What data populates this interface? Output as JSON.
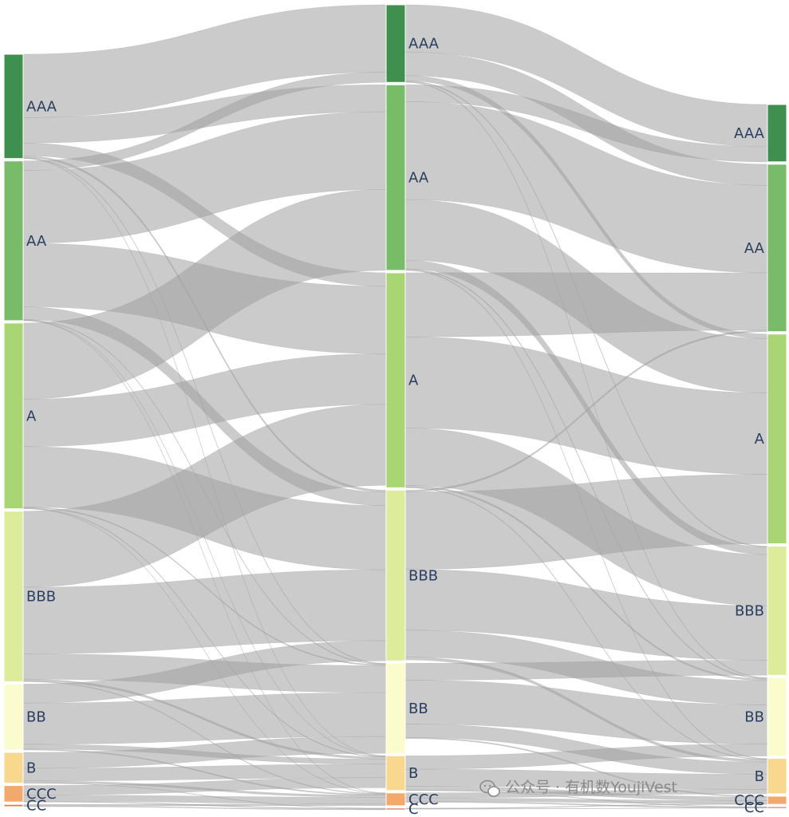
{
  "chart_data": {
    "type": "sankey",
    "title": "",
    "columns": [
      {
        "nodes": [
          {
            "id": "L0_AAA",
            "label": "AAA",
            "color": "#3f8f4e"
          },
          {
            "id": "L0_AA",
            "label": "AA",
            "color": "#78bb68"
          },
          {
            "id": "L0_A",
            "label": "A",
            "color": "#aad574"
          },
          {
            "id": "L0_BBB",
            "label": "BBB",
            "color": "#dcec9a"
          },
          {
            "id": "L0_BB",
            "label": "BB",
            "color": "#fbfccd"
          },
          {
            "id": "L0_B",
            "label": "B",
            "color": "#f8d88e"
          },
          {
            "id": "L0_CCC",
            "label": "CCC",
            "color": "#f2a96b"
          },
          {
            "id": "L0_CC",
            "label": "CC",
            "color": "#e07a4a"
          }
        ]
      },
      {
        "nodes": [
          {
            "id": "L1_AAA",
            "label": "AAA",
            "color": "#3f8f4e"
          },
          {
            "id": "L1_AA",
            "label": "AA",
            "color": "#78bb68"
          },
          {
            "id": "L1_A",
            "label": "A",
            "color": "#aad574"
          },
          {
            "id": "L1_BBB",
            "label": "BBB",
            "color": "#dcec9a"
          },
          {
            "id": "L1_BB",
            "label": "BB",
            "color": "#fbfccd"
          },
          {
            "id": "L1_B",
            "label": "B",
            "color": "#f8d88e"
          },
          {
            "id": "L1_CCC",
            "label": "CCC",
            "color": "#f2a96b"
          },
          {
            "id": "L1_C",
            "label": "C",
            "color": "#d6604d"
          }
        ]
      },
      {
        "nodes": [
          {
            "id": "L2_AAA",
            "label": "AAA",
            "color": "#3f8f4e"
          },
          {
            "id": "L2_AA",
            "label": "AA",
            "color": "#78bb68"
          },
          {
            "id": "L2_A",
            "label": "A",
            "color": "#aad574"
          },
          {
            "id": "L2_BBB",
            "label": "BBB",
            "color": "#dcec9a"
          },
          {
            "id": "L2_BB",
            "label": "BB",
            "color": "#fbfccd"
          },
          {
            "id": "L2_B",
            "label": "B",
            "color": "#f8d88e"
          },
          {
            "id": "L2_CCC",
            "label": "CCC",
            "color": "#f2a96b"
          },
          {
            "id": "L2_CC",
            "label": "CC",
            "color": "#d6604d"
          }
        ]
      }
    ],
    "links": [
      {
        "source": "L0_AAA",
        "target": "L1_AAA",
        "value": 20
      },
      {
        "source": "L0_AAA",
        "target": "L1_AA",
        "value": 8
      },
      {
        "source": "L0_AAA",
        "target": "L1_A",
        "value": 4
      },
      {
        "source": "L0_AAA",
        "target": "L1_BBB",
        "value": 0.6
      },
      {
        "source": "L0_AAA",
        "target": "L1_BB",
        "value": 0.2
      },
      {
        "source": "L0_AAA",
        "target": "L1_B",
        "value": 0.1
      },
      {
        "source": "L0_AA",
        "target": "L1_AAA",
        "value": 3
      },
      {
        "source": "L0_AA",
        "target": "L1_AA",
        "value": 23
      },
      {
        "source": "L0_AA",
        "target": "L1_A",
        "value": 20
      },
      {
        "source": "L0_AA",
        "target": "L1_BBB",
        "value": 4
      },
      {
        "source": "L0_AA",
        "target": "L1_BB",
        "value": 0.2
      },
      {
        "source": "L0_AA",
        "target": "L1_B",
        "value": 0.1
      },
      {
        "source": "L0_AA",
        "target": "L1_CCC",
        "value": 0.1
      },
      {
        "source": "L0_A",
        "target": "L1_AA",
        "value": 24
      },
      {
        "source": "L0_A",
        "target": "L1_A",
        "value": 15
      },
      {
        "source": "L0_A",
        "target": "L1_BBB",
        "value": 19
      },
      {
        "source": "L0_A",
        "target": "L1_BB",
        "value": 0.3
      },
      {
        "source": "L0_A",
        "target": "L1_B",
        "value": 0.2
      },
      {
        "source": "L0_A",
        "target": "L1_CCC",
        "value": 0.1
      },
      {
        "source": "L0_BBB",
        "target": "L1_A",
        "value": 24
      },
      {
        "source": "L0_BBB",
        "target": "L1_BBB",
        "value": 21
      },
      {
        "source": "L0_BBB",
        "target": "L1_BB",
        "value": 8
      },
      {
        "source": "L0_BBB",
        "target": "L1_B",
        "value": 0.6
      },
      {
        "source": "L0_BBB",
        "target": "L1_CCC",
        "value": 0.2
      },
      {
        "source": "L0_BB",
        "target": "L1_BBB",
        "value": 6
      },
      {
        "source": "L0_BB",
        "target": "L1_BB",
        "value": 13
      },
      {
        "source": "L0_BB",
        "target": "L1_B",
        "value": 1.5
      },
      {
        "source": "L0_BB",
        "target": "L1_CCC",
        "value": 0.3
      },
      {
        "source": "L0_B",
        "target": "L1_BB",
        "value": 5
      },
      {
        "source": "L0_B",
        "target": "L1_B",
        "value": 4
      },
      {
        "source": "L0_B",
        "target": "L1_CCC",
        "value": 0.6
      },
      {
        "source": "L0_B",
        "target": "L1_C",
        "value": 0.1
      },
      {
        "source": "L0_CCC",
        "target": "L1_B",
        "value": 3
      },
      {
        "source": "L0_CCC",
        "target": "L1_CCC",
        "value": 2
      },
      {
        "source": "L0_CCC",
        "target": "L1_C",
        "value": 0.2
      },
      {
        "source": "L0_CC",
        "target": "L1_CCC",
        "value": 0.5
      },
      {
        "source": "L0_CC",
        "target": "L1_C",
        "value": 0.2
      },
      {
        "source": "L1_AAA",
        "target": "L2_AAA",
        "value": 14
      },
      {
        "source": "L1_AAA",
        "target": "L2_AA",
        "value": 7
      },
      {
        "source": "L1_AAA",
        "target": "L2_A",
        "value": 1.5
      },
      {
        "source": "L1_AAA",
        "target": "L2_BBB",
        "value": 0.3
      },
      {
        "source": "L1_AAA",
        "target": "L2_BB",
        "value": 0.2
      },
      {
        "source": "L1_AA",
        "target": "L2_AAA",
        "value": 5
      },
      {
        "source": "L1_AA",
        "target": "L2_AA",
        "value": 29
      },
      {
        "source": "L1_AA",
        "target": "L2_A",
        "value": 18
      },
      {
        "source": "L1_AA",
        "target": "L2_BBB",
        "value": 2.5
      },
      {
        "source": "L1_AA",
        "target": "L2_BB",
        "value": 0.3
      },
      {
        "source": "L1_AA",
        "target": "L2_B",
        "value": 0.2
      },
      {
        "source": "L1_A",
        "target": "L2_AA",
        "value": 19
      },
      {
        "source": "L1_A",
        "target": "L2_A",
        "value": 27
      },
      {
        "source": "L1_A",
        "target": "L2_BBB",
        "value": 17
      },
      {
        "source": "L1_A",
        "target": "L2_BB",
        "value": 0.5
      },
      {
        "source": "L1_A",
        "target": "L2_B",
        "value": 0.2
      },
      {
        "source": "L1_BBB",
        "target": "L2_AA",
        "value": 0.5
      },
      {
        "source": "L1_BBB",
        "target": "L2_A",
        "value": 23
      },
      {
        "source": "L1_BBB",
        "target": "L2_BBB",
        "value": 18
      },
      {
        "source": "L1_BBB",
        "target": "L2_BB",
        "value": 8
      },
      {
        "source": "L1_BBB",
        "target": "L2_B",
        "value": 0.8
      },
      {
        "source": "L1_BB",
        "target": "L2_BBB",
        "value": 5
      },
      {
        "source": "L1_BB",
        "target": "L2_BB",
        "value": 13
      },
      {
        "source": "L1_BB",
        "target": "L2_B",
        "value": 4
      },
      {
        "source": "L1_BB",
        "target": "L2_CCC",
        "value": 0.3
      },
      {
        "source": "L1_B",
        "target": "L2_BB",
        "value": 4
      },
      {
        "source": "L1_B",
        "target": "L2_B",
        "value": 5
      },
      {
        "source": "L1_B",
        "target": "L2_CCC",
        "value": 1.2
      },
      {
        "source": "L1_B",
        "target": "L2_CC",
        "value": 0.1
      },
      {
        "source": "L1_CCC",
        "target": "L2_B",
        "value": 1.5
      },
      {
        "source": "L1_CCC",
        "target": "L2_CCC",
        "value": 1
      },
      {
        "source": "L1_CCC",
        "target": "L2_CC",
        "value": 0.3
      },
      {
        "source": "L1_C",
        "target": "L2_CCC",
        "value": 0.2
      },
      {
        "source": "L1_C",
        "target": "L2_CC",
        "value": 0.1
      }
    ],
    "link_color": "#a0a0a0",
    "link_opacity": 0.55
  },
  "watermark": {
    "text": "公众号 · 有机数YoujiVest",
    "icon": "wechat-icon"
  }
}
